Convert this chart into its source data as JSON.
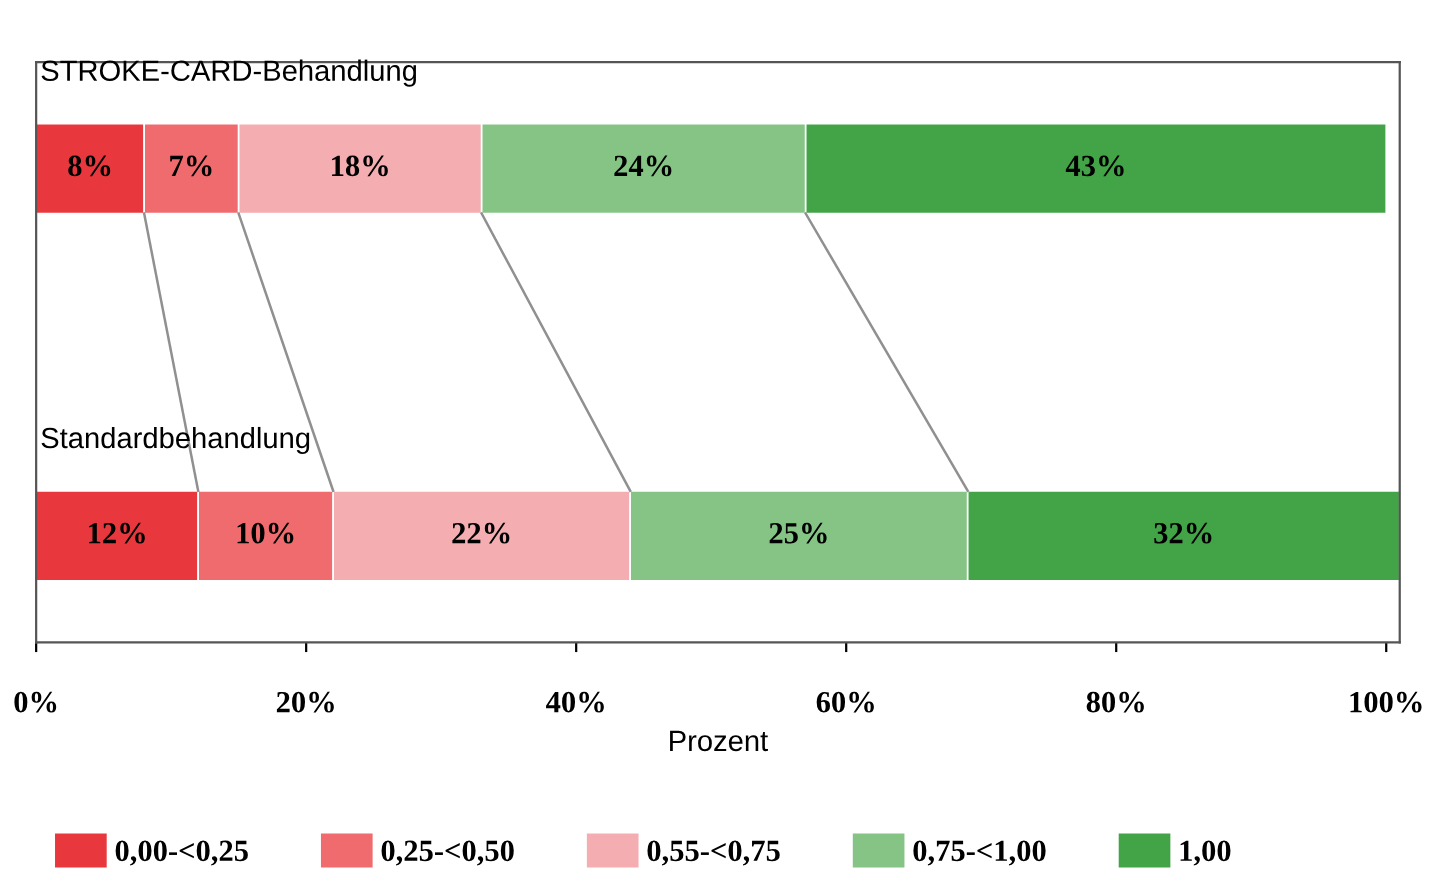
{
  "chart_data": {
    "type": "bar",
    "orientation": "horizontal",
    "stacked": true,
    "categories": [
      "STROKE-CARD-Behandlung",
      "Standardbehandlung"
    ],
    "series": [
      {
        "name": "0,00-<0,25",
        "color": "#e8383d",
        "values": [
          8,
          12
        ],
        "value_labels": [
          "8%",
          "12%"
        ]
      },
      {
        "name": "0,25-<0,50",
        "color": "#ef6b6e",
        "values": [
          7,
          10
        ],
        "value_labels": [
          "7%",
          "10%"
        ]
      },
      {
        "name": "0,55-<0,75",
        "color": "#f4adb1",
        "values": [
          18,
          22
        ],
        "value_labels": [
          "18%",
          "22%"
        ]
      },
      {
        "name": "0,75-<1,00",
        "color": "#86c486",
        "values": [
          24,
          25
        ],
        "value_labels": [
          "24%",
          "25%"
        ]
      },
      {
        "name": "1,00",
        "color": "#43a447",
        "values": [
          43,
          32
        ],
        "value_labels": [
          "43%",
          "32%"
        ]
      }
    ],
    "xlabel": "Prozent",
    "xlim": [
      0,
      101
    ],
    "xticks": [
      {
        "value": 0,
        "label": "0%"
      },
      {
        "value": 20,
        "label": "20%"
      },
      {
        "value": 40,
        "label": "40%"
      },
      {
        "value": 60,
        "label": "60%"
      },
      {
        "value": 80,
        "label": "80%"
      },
      {
        "value": 100,
        "label": "100%"
      }
    ],
    "legend": "bottom",
    "grid": false
  }
}
